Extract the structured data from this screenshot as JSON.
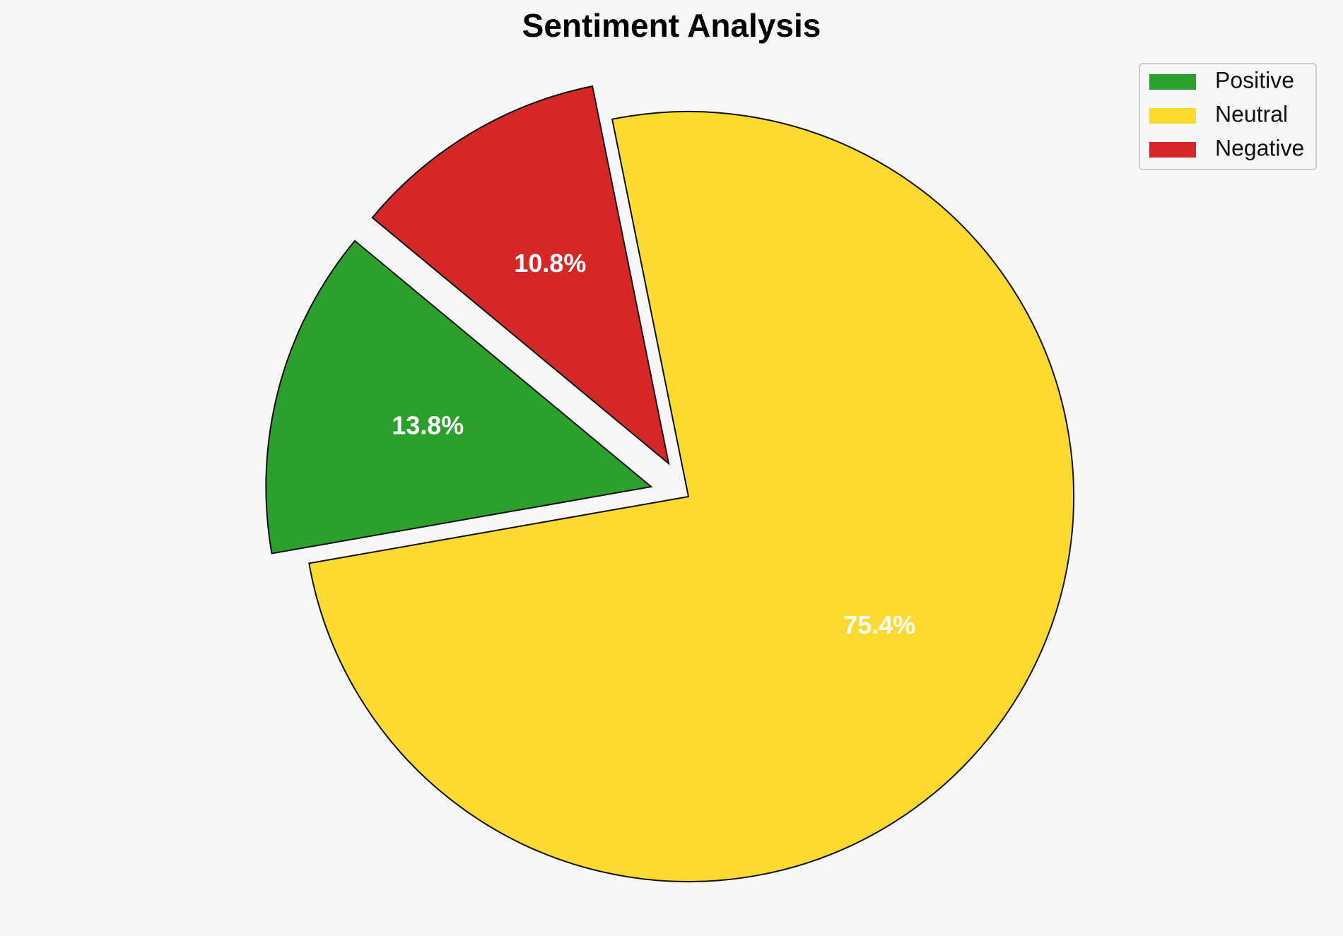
{
  "chart_data": {
    "type": "pie",
    "title": "Sentiment Analysis",
    "categories": [
      "Positive",
      "Neutral",
      "Negative"
    ],
    "values": [
      13.8,
      75.4,
      10.8
    ],
    "value_labels": [
      "13.8%",
      "75.4%",
      "10.8%"
    ],
    "colors": [
      "#2ca02c",
      "#fed930",
      "#d62728"
    ],
    "explode": [
      0.1,
      0,
      0.1
    ],
    "legend": "upper right"
  }
}
